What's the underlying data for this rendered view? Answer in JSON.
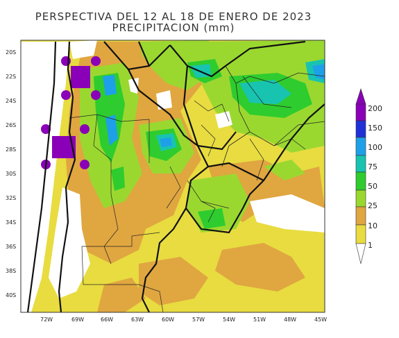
{
  "title": "PERSPECTIVA DEL 12 AL 18 DE ENERO DE 2023",
  "subtitle": "PRECIPITACION (mm)",
  "lat_labels": [
    "20S",
    "22S",
    "24S",
    "26S",
    "28S",
    "30S",
    "32S",
    "34S",
    "36S",
    "38S",
    "40S"
  ],
  "lon_labels": [
    "72W",
    "69W",
    "66W",
    "63W",
    "60W",
    "57W",
    "54W",
    "51W",
    "48W",
    "45W"
  ],
  "legend": {
    "thresholds": [
      "200",
      "150",
      "100",
      "75",
      "50",
      "25",
      "10",
      "1"
    ],
    "colors": {
      "purple": "#8a00b8",
      "dark_blue": "#2030d8",
      "blue": "#1ea0e8",
      "cyan": "#18c4b0",
      "green": "#2ecc2e",
      "light_green": "#9ad830",
      "orange": "#e0a640",
      "yellow": "#e8dc40",
      "white": "#ffffff"
    }
  }
}
